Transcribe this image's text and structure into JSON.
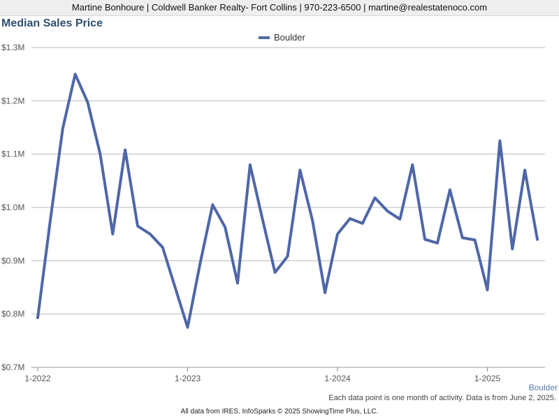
{
  "header": {
    "contact": "Martine Bonhoure | Coldwell Banker Realty- Fort Collins | 970-223-6500 | martine@realestatenoco.com"
  },
  "footer": {
    "note": "Each data point is one month of activity. Data is from June 2, 2025.",
    "credit": "All data from IRES. InfoSparks © 2025 ShowingTime Plus, LLC.",
    "area_label": "Boulder"
  },
  "colors": {
    "series": "#4f67a8",
    "grid": "#bbbbbb",
    "title": "#2f4f6f"
  },
  "chart_data": {
    "type": "line",
    "title": "Median Sales Price",
    "xlabel": "",
    "ylabel": "",
    "ylim": [
      700000,
      1300000
    ],
    "y_ticks": [
      {
        "value": 700000,
        "label": "$0.7M"
      },
      {
        "value": 800000,
        "label": "$0.8M"
      },
      {
        "value": 900000,
        "label": "$0.9M"
      },
      {
        "value": 1000000,
        "label": "$1.0M"
      },
      {
        "value": 1100000,
        "label": "$1.1M"
      },
      {
        "value": 1200000,
        "label": "$1.2M"
      },
      {
        "value": 1300000,
        "label": "$1.3M"
      }
    ],
    "x_ticks": [
      {
        "value": "2022-01",
        "label": "1-2022"
      },
      {
        "value": "2023-01",
        "label": "1-2023"
      },
      {
        "value": "2024-01",
        "label": "1-2024"
      },
      {
        "value": "2025-01",
        "label": "1-2025"
      }
    ],
    "x": [
      "2022-01",
      "2022-02",
      "2022-03",
      "2022-04",
      "2022-05",
      "2022-06",
      "2022-07",
      "2022-08",
      "2022-09",
      "2022-10",
      "2022-11",
      "2022-12",
      "2023-01",
      "2023-02",
      "2023-03",
      "2023-04",
      "2023-05",
      "2023-06",
      "2023-07",
      "2023-08",
      "2023-09",
      "2023-10",
      "2023-11",
      "2023-12",
      "2024-01",
      "2024-02",
      "2024-03",
      "2024-04",
      "2024-05",
      "2024-06",
      "2024-07",
      "2024-08",
      "2024-09",
      "2024-10",
      "2024-11",
      "2024-12",
      "2025-01",
      "2025-02",
      "2025-03",
      "2025-04",
      "2025-05"
    ],
    "grid": true,
    "legend": "top-center",
    "series": [
      {
        "name": "Boulder",
        "values": [
          793000,
          975000,
          1148000,
          1250000,
          1197000,
          1100000,
          950000,
          1108000,
          965000,
          950000,
          925000,
          850000,
          775000,
          895000,
          1005000,
          963000,
          858000,
          1080000,
          977000,
          878000,
          908000,
          1070000,
          975000,
          840000,
          950000,
          979000,
          970000,
          1018000,
          993000,
          978000,
          1080000,
          940000,
          933000,
          1033000,
          943000,
          939000,
          845000,
          1125000,
          922000,
          1070000,
          940000
        ]
      }
    ]
  }
}
